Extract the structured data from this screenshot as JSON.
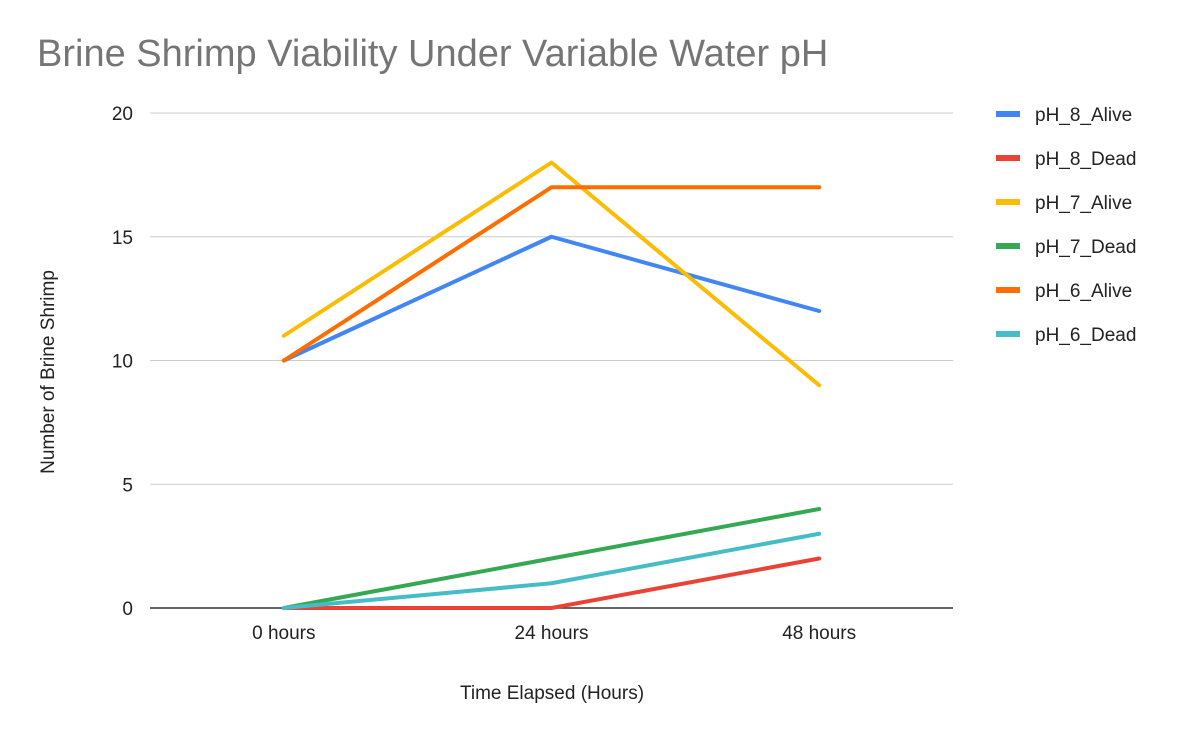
{
  "chart_data": {
    "type": "line",
    "title": "Brine Shrimp Viability Under Variable Water pH",
    "xlabel": "Time Elapsed (Hours)",
    "ylabel": "Number of Brine Shrimp",
    "categories": [
      "0 hours",
      "24 hours",
      "48 hours"
    ],
    "ylim": [
      0,
      20
    ],
    "yticks": [
      0,
      5,
      10,
      15,
      20
    ],
    "grid": true,
    "legend_position": "right",
    "series": [
      {
        "name": "pH_8_Alive",
        "color": "#4285f4",
        "values": [
          10,
          15,
          12
        ]
      },
      {
        "name": "pH_8_Dead",
        "color": "#ea4335",
        "values": [
          0,
          0,
          2
        ]
      },
      {
        "name": "pH_7_Alive",
        "color": "#fbbc04",
        "values": [
          11,
          18,
          9
        ]
      },
      {
        "name": "pH_7_Dead",
        "color": "#34a853",
        "values": [
          0,
          2,
          4
        ]
      },
      {
        "name": "pH_6_Alive",
        "color": "#ff6d01",
        "values": [
          10,
          17,
          17
        ]
      },
      {
        "name": "pH_6_Dead",
        "color": "#46bdc6",
        "values": [
          0,
          1,
          3
        ]
      }
    ]
  }
}
